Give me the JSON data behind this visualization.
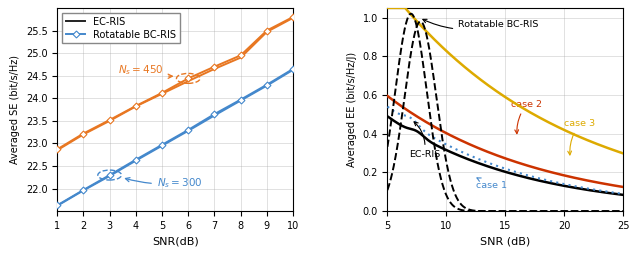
{
  "se_snr": [
    1,
    2,
    3,
    4,
    5,
    6,
    7,
    8,
    9,
    10
  ],
  "se_ec_ns450": [
    22.85,
    23.2,
    23.5,
    23.82,
    24.1,
    24.38,
    24.65,
    24.9,
    25.47,
    25.78
  ],
  "se_bc_ns450": [
    22.87,
    23.22,
    23.52,
    23.83,
    24.12,
    24.44,
    24.7,
    24.95,
    25.5,
    25.8
  ],
  "se_ec_ns300": [
    21.62,
    21.96,
    22.28,
    22.62,
    22.95,
    23.28,
    23.62,
    23.95,
    24.28,
    24.63
  ],
  "se_bc_ns300": [
    21.63,
    21.97,
    22.3,
    22.64,
    22.97,
    23.3,
    23.65,
    23.97,
    24.3,
    24.65
  ],
  "color_orange": "#E87722",
  "color_blue": "#4488CC",
  "color_black": "#111111",
  "color_red_orange": "#CC3300",
  "color_gold": "#DDAA00",
  "color_case1": "#4488CC",
  "annotation_fontsize": 7.5,
  "tick_fontsize": 7,
  "label_fontsize": 8,
  "legend_fontsize": 7
}
